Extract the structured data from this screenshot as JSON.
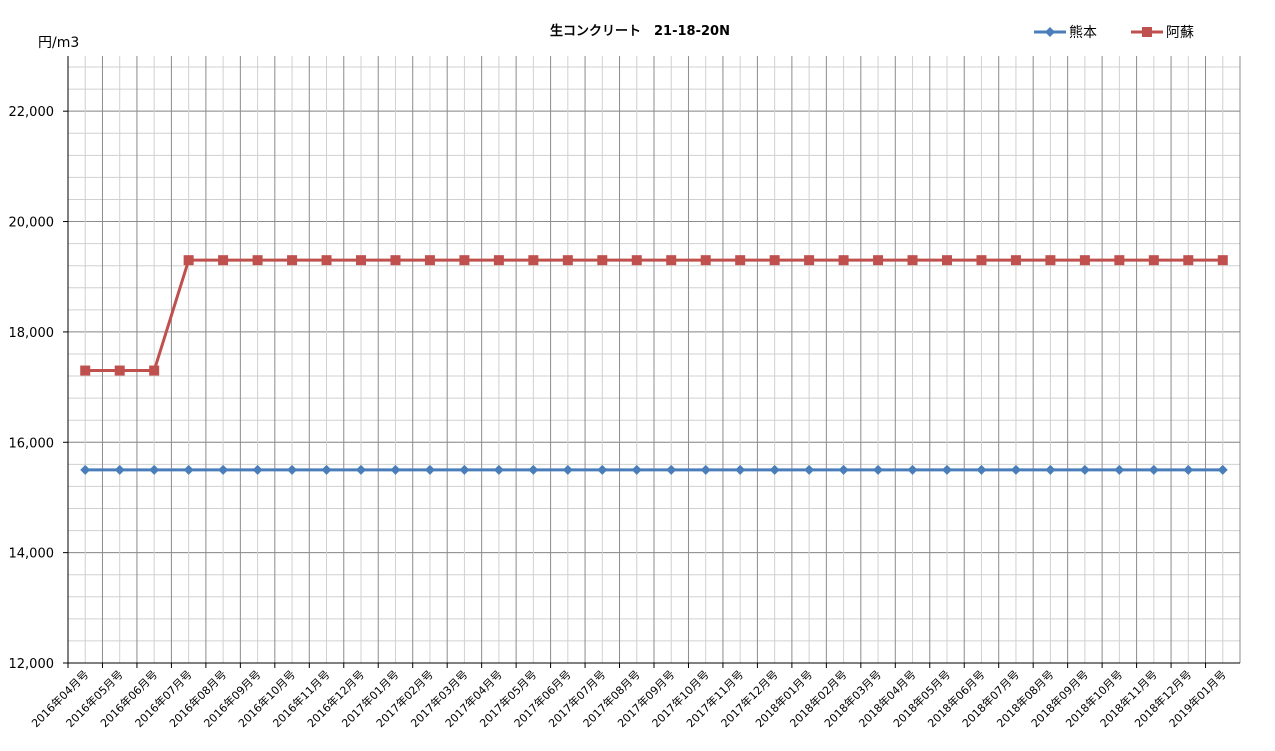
{
  "chart_data": {
    "type": "line",
    "title": "生コンクリート　21-18-20N",
    "ylabel": "円/m3",
    "xlabel": "",
    "ylim": [
      12000,
      23000
    ],
    "y_ticks": [
      12000,
      14000,
      16000,
      18000,
      20000,
      22000
    ],
    "y_tick_labels": [
      "12,000",
      "14,000",
      "16,000",
      "18,000",
      "20,000",
      "22,000"
    ],
    "minor_grid_step": 400,
    "grid": true,
    "legend_position": "top-right",
    "categories": [
      "2016年04月号",
      "2016年05月号",
      "2016年06月号",
      "2016年07月号",
      "2016年08月号",
      "2016年09月号",
      "2016年10月号",
      "2016年11月号",
      "2016年12月号",
      "2017年01月号",
      "2017年02月号",
      "2017年03月号",
      "2017年04月号",
      "2017年05月号",
      "2017年06月号",
      "2017年07月号",
      "2017年08月号",
      "2017年09月号",
      "2017年10月号",
      "2017年11月号",
      "2017年12月号",
      "2018年01月号",
      "2018年02月号",
      "2018年03月号",
      "2018年04月号",
      "2018年05月号",
      "2018年06月号",
      "2018年07月号",
      "2018年08月号",
      "2018年09月号",
      "2018年10月号",
      "2018年11月号",
      "2018年12月号",
      "2019年01月号"
    ],
    "series": [
      {
        "name": "熊本",
        "color": "#4a7ebb",
        "marker": "diamond",
        "values": [
          15500,
          15500,
          15500,
          15500,
          15500,
          15500,
          15500,
          15500,
          15500,
          15500,
          15500,
          15500,
          15500,
          15500,
          15500,
          15500,
          15500,
          15500,
          15500,
          15500,
          15500,
          15500,
          15500,
          15500,
          15500,
          15500,
          15500,
          15500,
          15500,
          15500,
          15500,
          15500,
          15500,
          15500
        ]
      },
      {
        "name": "阿蘇",
        "color": "#c0504d",
        "marker": "square",
        "values": [
          17300,
          17300,
          17300,
          19300,
          19300,
          19300,
          19300,
          19300,
          19300,
          19300,
          19300,
          19300,
          19300,
          19300,
          19300,
          19300,
          19300,
          19300,
          19300,
          19300,
          19300,
          19300,
          19300,
          19300,
          19300,
          19300,
          19300,
          19300,
          19300,
          19300,
          19300,
          19300,
          19300,
          19300
        ]
      }
    ]
  }
}
